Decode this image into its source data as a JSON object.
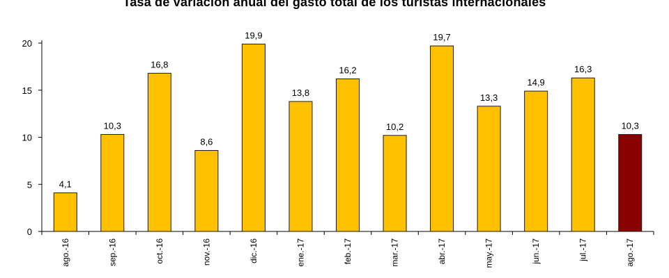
{
  "chart_data": {
    "type": "bar",
    "title": "Tasa de variación anual del gasto total de los turistas internacionales",
    "xlabel": "",
    "ylabel": "",
    "categories": [
      "ago.-16",
      "sep.-16",
      "oct.-16",
      "nov.-16",
      "dic.-16",
      "ene.-17",
      "feb.-17",
      "mar.-17",
      "abr.-17",
      "may.-17",
      "jun.-17",
      "jul.-17",
      "ago.-17"
    ],
    "values": [
      4.1,
      10.3,
      16.8,
      8.6,
      19.9,
      13.8,
      16.2,
      10.2,
      19.7,
      13.3,
      14.9,
      16.3,
      10.3
    ],
    "value_labels": [
      "4,1",
      "10,3",
      "16,8",
      "8,6",
      "19,9",
      "13,8",
      "16,2",
      "10,2",
      "19,7",
      "13,3",
      "14,9",
      "16,3",
      "10,3"
    ],
    "ylim": [
      0,
      20
    ],
    "yticks": [
      0,
      5,
      10,
      15,
      20
    ],
    "grid": false,
    "colors": {
      "default_bar": "#FFC000",
      "highlight_bar": "#8B0000",
      "bar_border": "#1a1a1a"
    },
    "highlight_index": 12
  }
}
